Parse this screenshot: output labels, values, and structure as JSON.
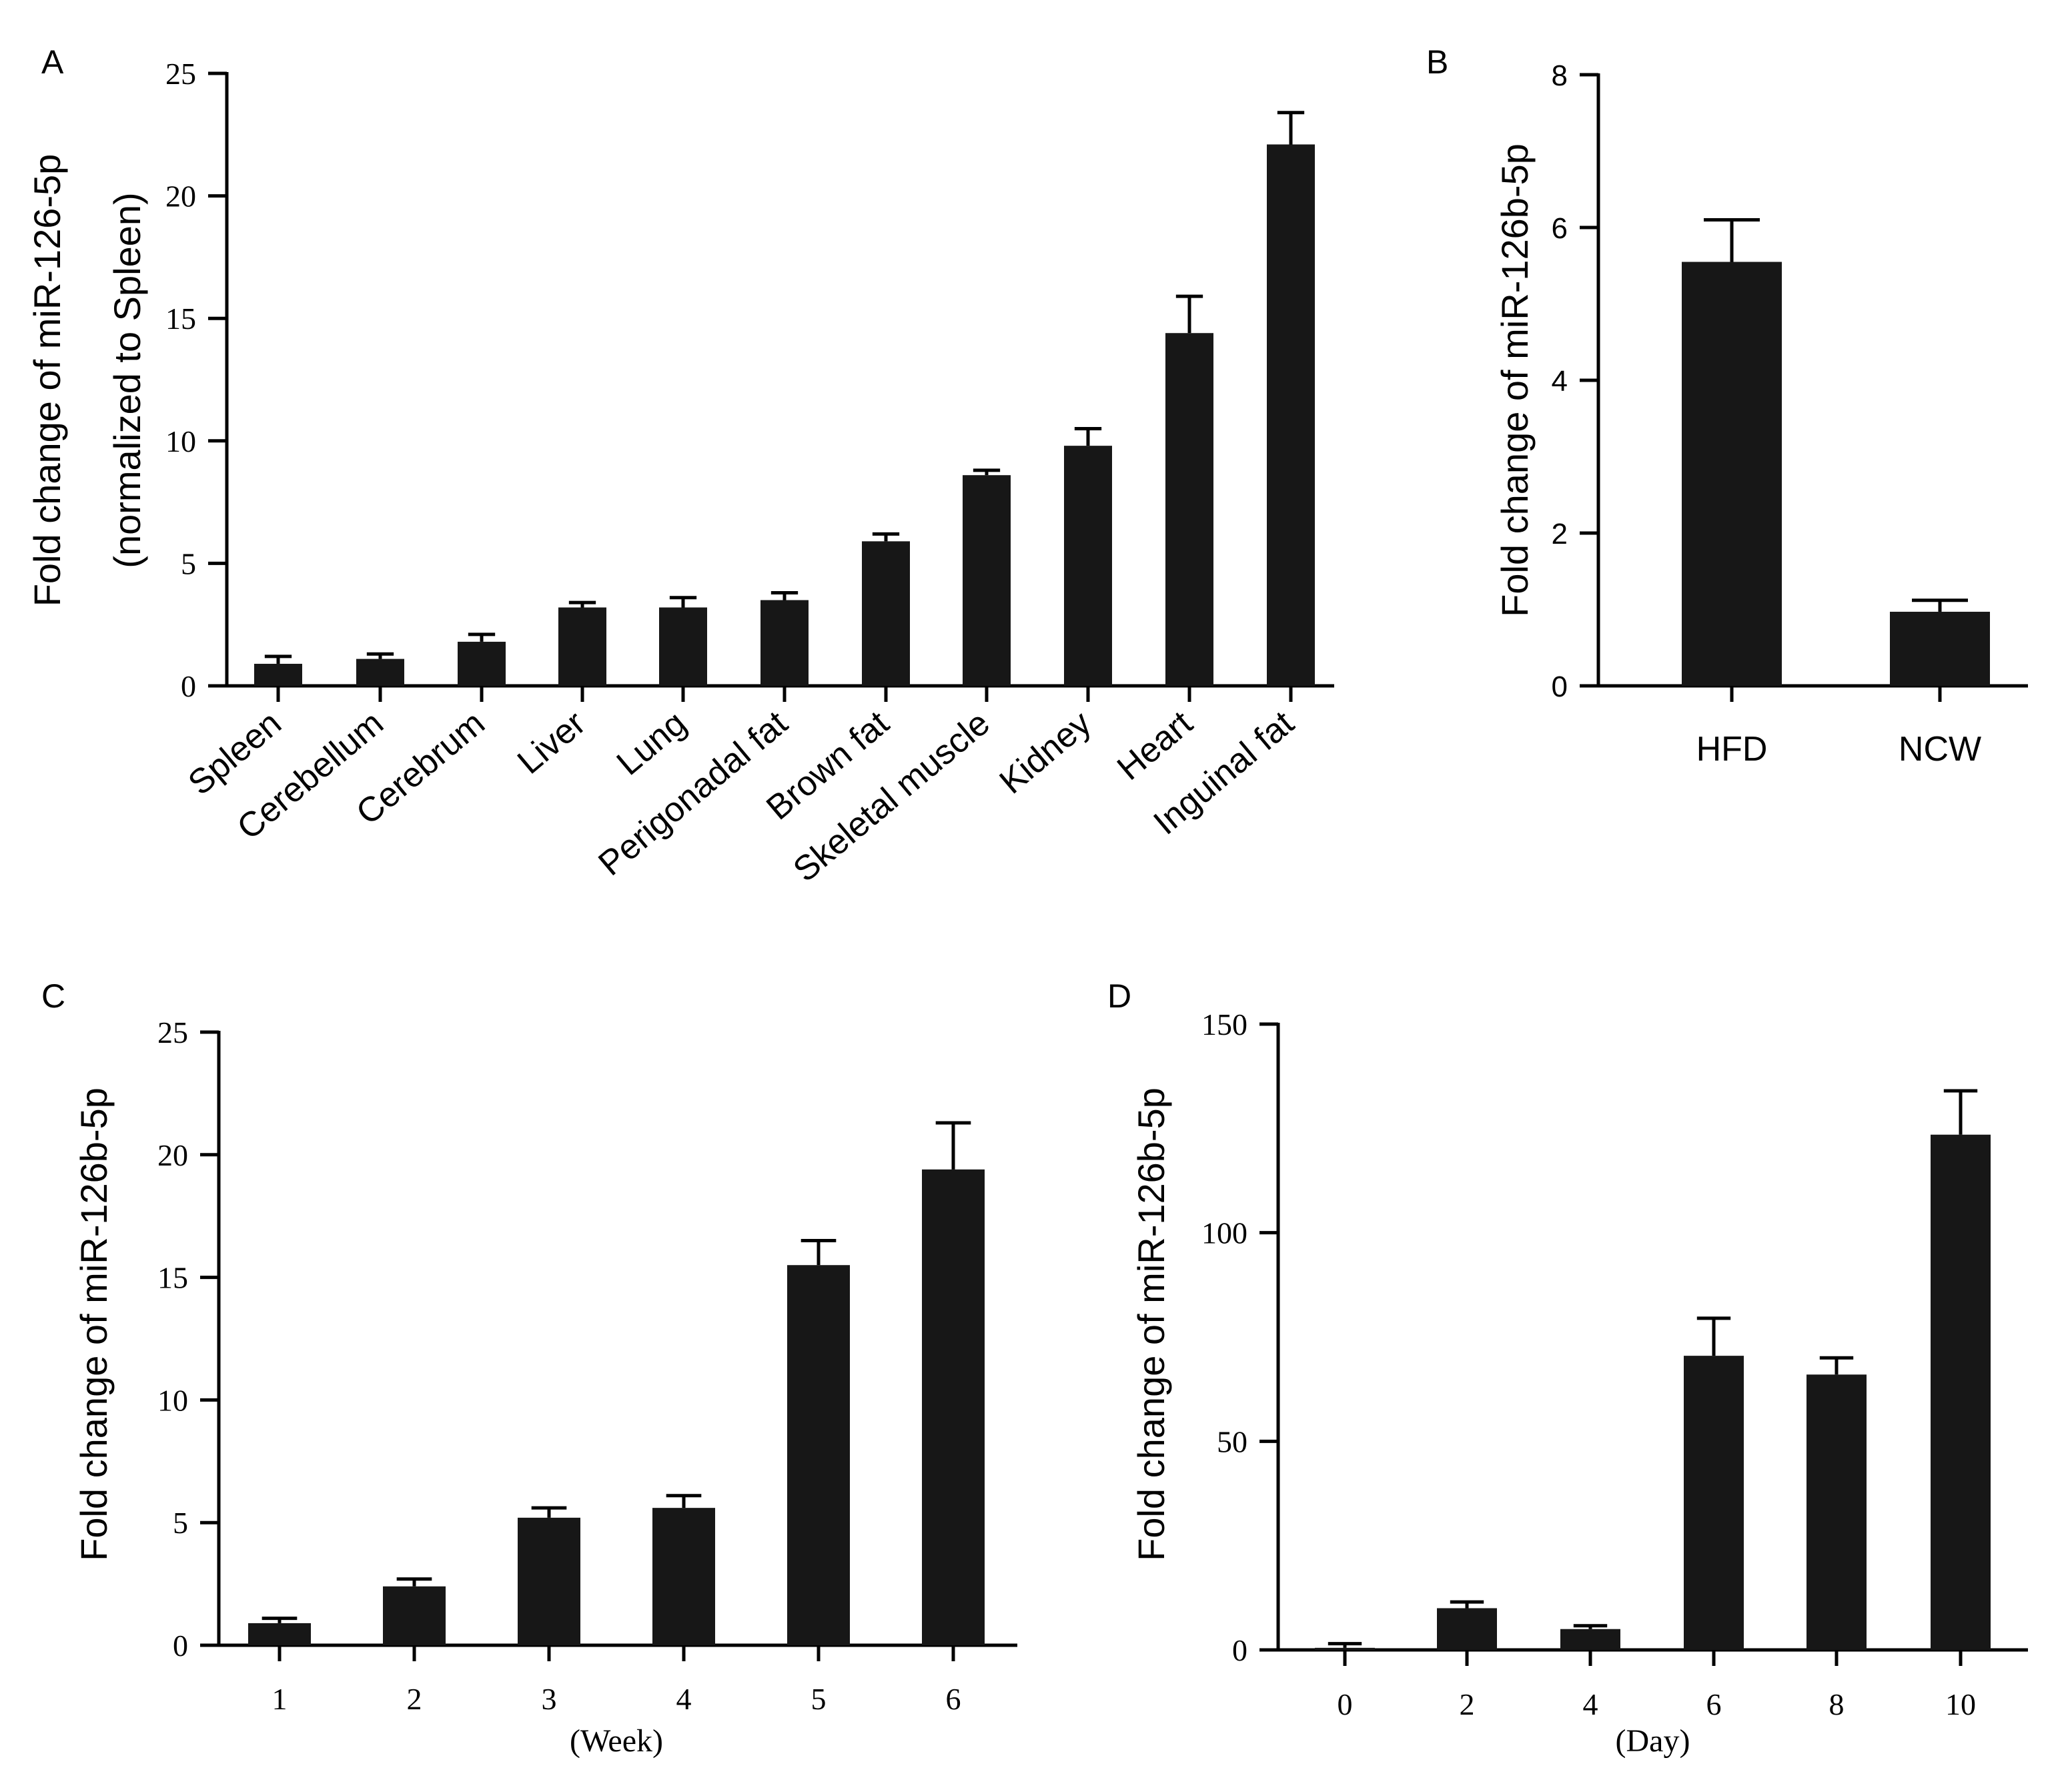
{
  "chart_data": [
    {
      "panel": "A",
      "type": "bar",
      "ylabel": "Fold change of miR-126-5p",
      "ylabel2": "(normalized to Spleen)",
      "xlabel": "",
      "ylim": [
        0,
        25
      ],
      "yticks": [
        "0",
        "5",
        "10",
        "15",
        "20",
        "25"
      ],
      "categories": [
        "Spleen",
        "Cerebellum",
        "Cerebrum",
        "Liver",
        "Lung",
        "Perigonadal fat",
        "Brown fat",
        "Skeletal muscle",
        "Kidney",
        "Heart",
        "Inguinal fat"
      ],
      "values": [
        0.9,
        1.1,
        1.8,
        3.2,
        3.2,
        3.5,
        5.9,
        8.6,
        9.8,
        14.4,
        22.1
      ],
      "errors": [
        0.3,
        0.2,
        0.3,
        0.2,
        0.4,
        0.3,
        0.3,
        0.2,
        0.7,
        1.5,
        1.3
      ]
    },
    {
      "panel": "B",
      "type": "bar",
      "ylabel": "Fold change of miR-126b-5p",
      "xlabel": "",
      "ylim": [
        0,
        8
      ],
      "yticks": [
        "0",
        "2",
        "4",
        "6",
        "8"
      ],
      "categories": [
        "HFD",
        "NCW"
      ],
      "values": [
        5.55,
        0.97
      ],
      "errors": [
        0.55,
        0.15
      ]
    },
    {
      "panel": "C",
      "type": "bar",
      "ylabel": "Fold change of miR-126b-5p",
      "xlabel": "(Week)",
      "ylim": [
        0,
        25
      ],
      "yticks": [
        "0",
        "5",
        "10",
        "15",
        "20",
        "25"
      ],
      "categories": [
        "1",
        "2",
        "3",
        "4",
        "5",
        "6"
      ],
      "values": [
        0.9,
        2.4,
        5.2,
        5.6,
        15.5,
        19.4
      ],
      "errors": [
        0.2,
        0.3,
        0.4,
        0.5,
        1.0,
        1.9
      ]
    },
    {
      "panel": "D",
      "type": "bar",
      "ylabel": "Fold change of miR-126b-5p",
      "xlabel": "(Day)",
      "ylim": [
        0,
        150
      ],
      "yticks": [
        "0",
        "50",
        "100",
        "150"
      ],
      "categories": [
        "0",
        "2",
        "4",
        "6",
        "8",
        "10"
      ],
      "values": [
        0.5,
        10,
        5,
        70.5,
        66,
        123.5
      ],
      "errors": [
        1,
        1.5,
        0.8,
        9,
        4,
        10.5
      ]
    }
  ]
}
